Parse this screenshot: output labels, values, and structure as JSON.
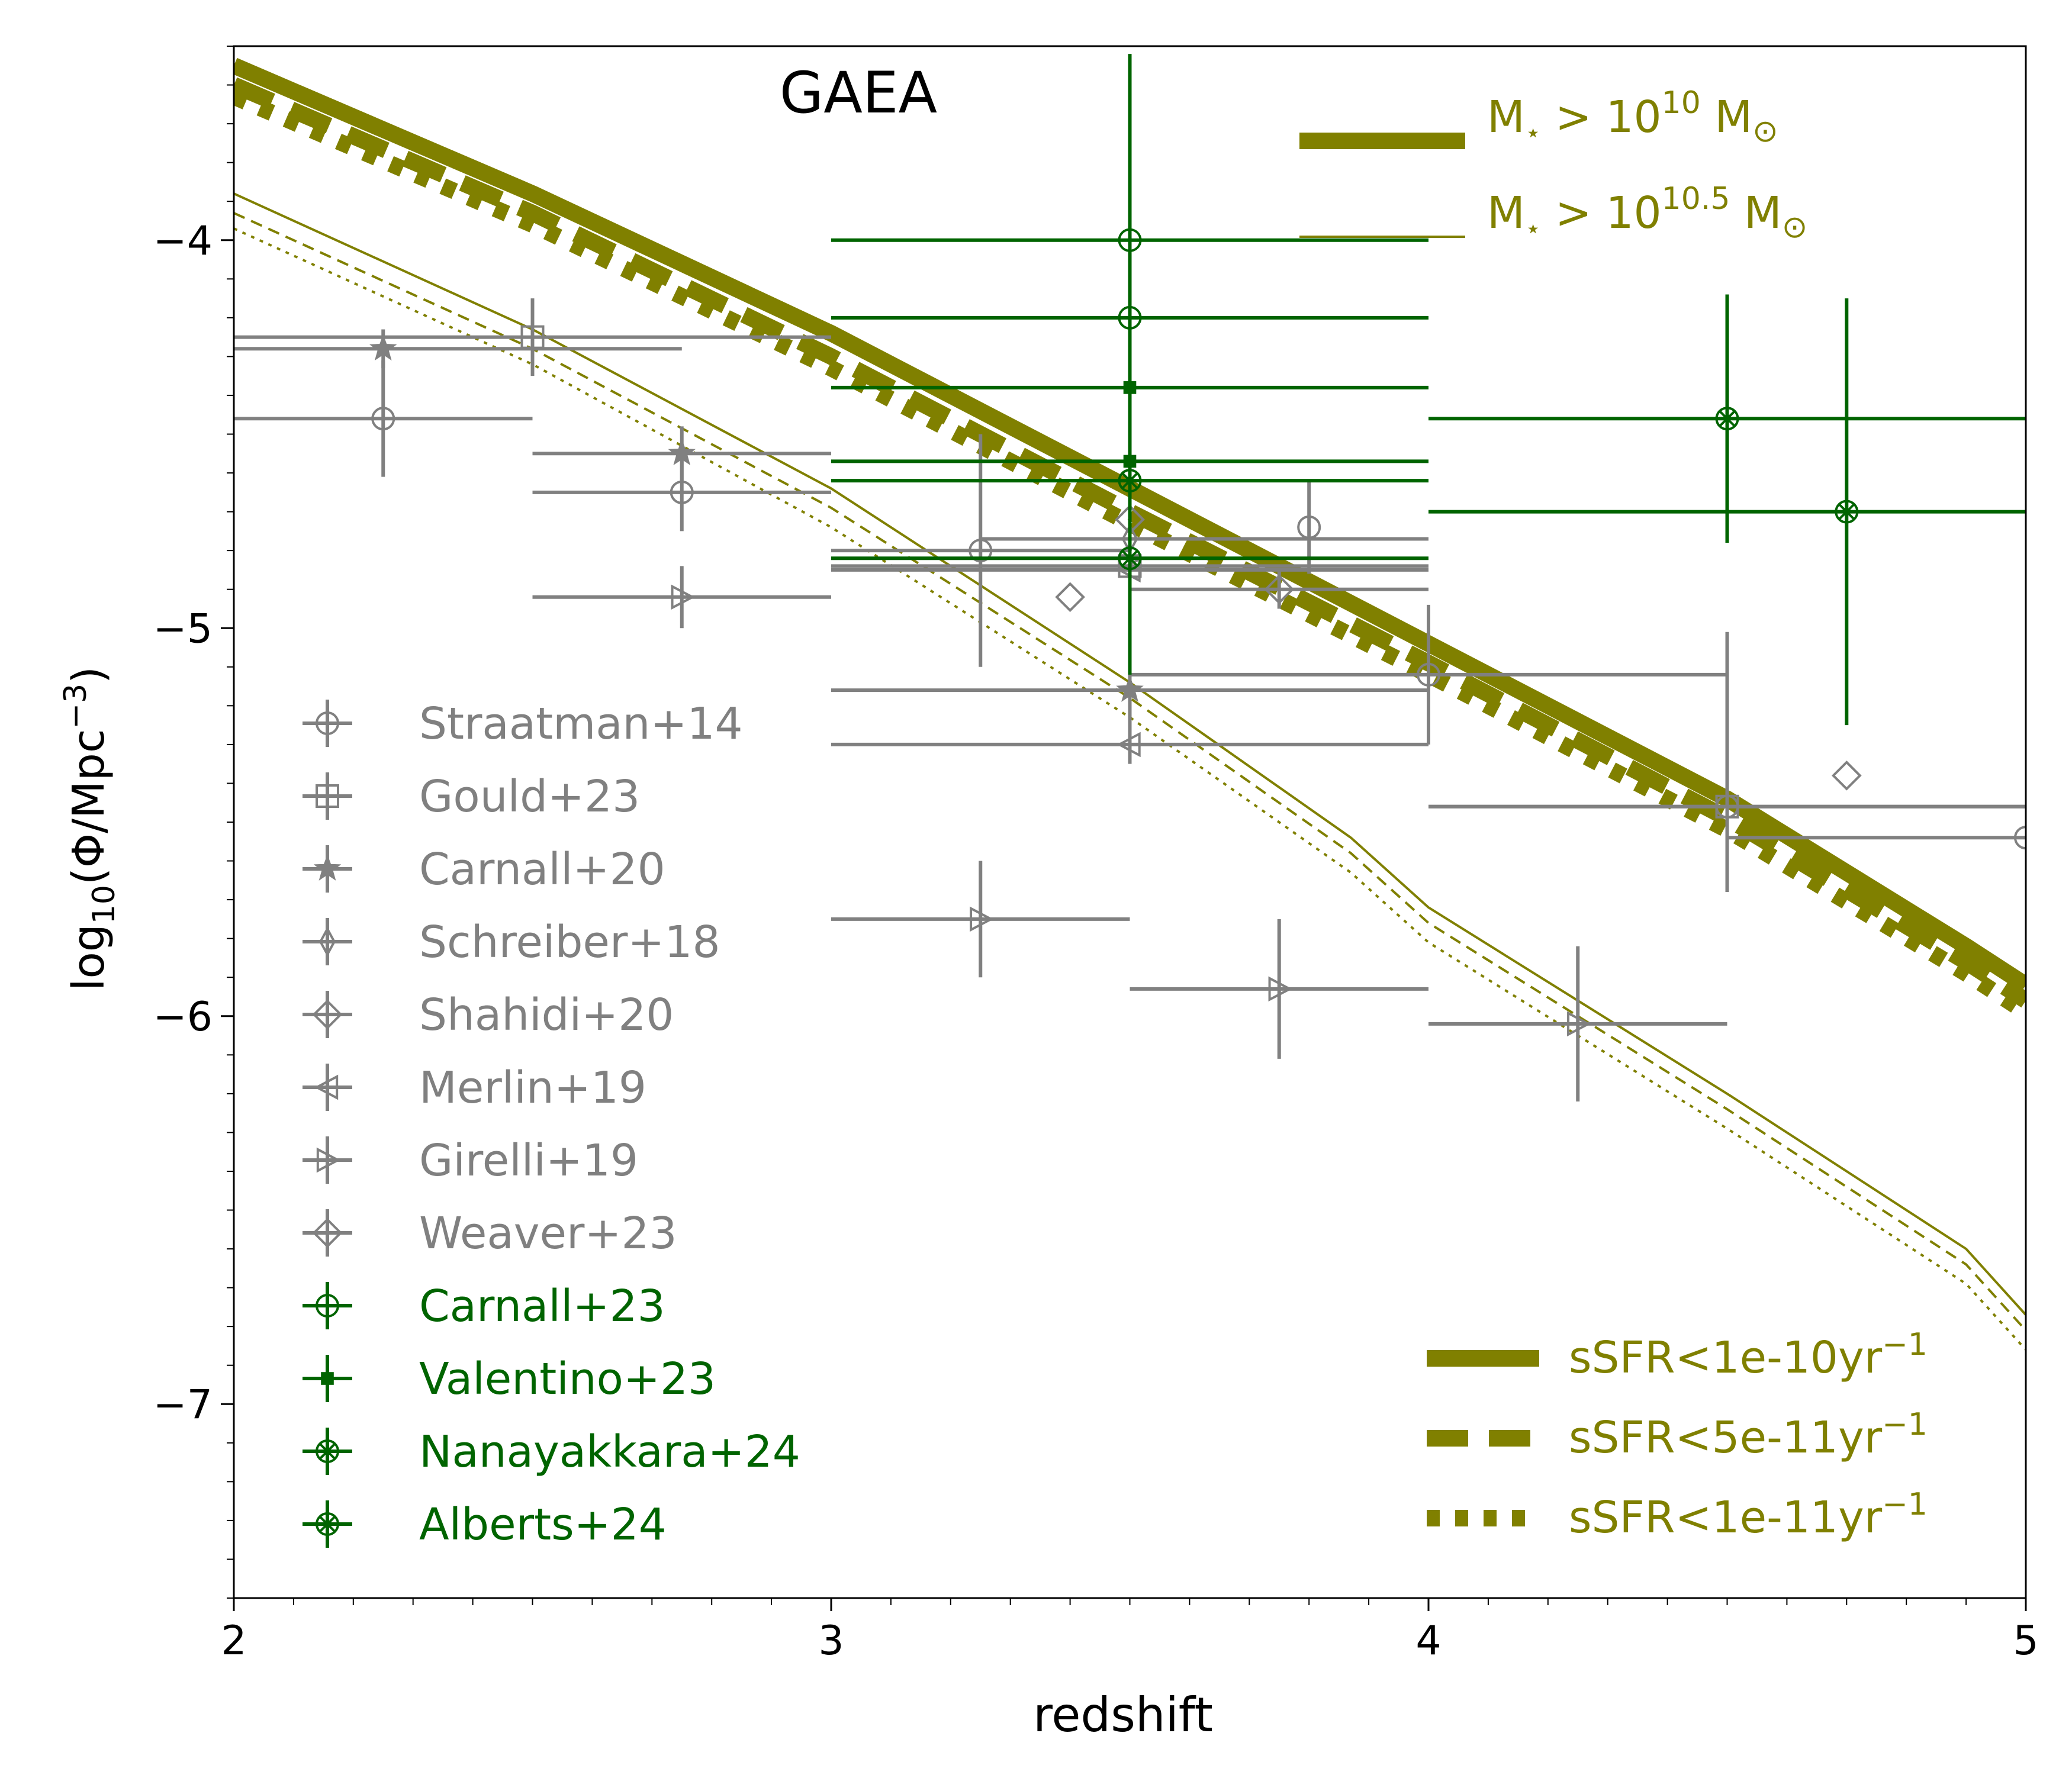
{
  "chart_data": {
    "type": "line",
    "title": "GAEA",
    "xlabel": "redshift",
    "ylabel_parts": [
      "log",
      "10",
      "(Φ/Mpc",
      "−3",
      ")"
    ],
    "xlim": [
      2,
      5
    ],
    "ylim": [
      -7.5,
      -3.5
    ],
    "xticks": [
      {
        "value": 2,
        "label": "2"
      },
      {
        "value": 3,
        "label": "3"
      },
      {
        "value": 4,
        "label": "4"
      },
      {
        "value": 5,
        "label": "5"
      }
    ],
    "yticks": [
      {
        "value": -4,
        "label": "−4"
      },
      {
        "value": -5,
        "label": "−5"
      },
      {
        "value": -6,
        "label": "−6"
      },
      {
        "value": -7,
        "label": "−7"
      }
    ],
    "colors": {
      "model": "#808000",
      "literature": "#808080",
      "jwst": "#006400",
      "axis": "#000000"
    },
    "model_curves": [
      {
        "mass": "10",
        "ssfr": "1e-10",
        "style": "solid",
        "x": [
          2.0,
          2.5,
          3.0,
          3.5,
          4.0,
          4.5,
          4.9,
          5.0
        ],
        "y": [
          -3.55,
          -3.88,
          -4.24,
          -4.64,
          -5.04,
          -5.44,
          -5.82,
          -5.92
        ]
      },
      {
        "mass": "10",
        "ssfr": "5e-11",
        "style": "dashed",
        "x": [
          2.0,
          2.5,
          3.0,
          3.5,
          4.0,
          4.5,
          4.9,
          5.0
        ],
        "y": [
          -3.6,
          -3.93,
          -4.3,
          -4.7,
          -5.09,
          -5.49,
          -5.86,
          -5.96
        ]
      },
      {
        "mass": "10",
        "ssfr": "1e-11",
        "style": "dotted",
        "x": [
          2.0,
          2.5,
          3.0,
          3.5,
          4.0,
          4.5,
          4.9,
          5.0
        ],
        "y": [
          -3.63,
          -3.96,
          -4.33,
          -4.73,
          -5.12,
          -5.52,
          -5.89,
          -5.99
        ]
      },
      {
        "mass": "10.5",
        "ssfr": "1e-10",
        "style": "solid",
        "x": [
          2.0,
          2.5,
          3.0,
          3.5,
          3.87,
          4.0,
          4.5,
          4.9,
          5.0
        ],
        "y": [
          -3.88,
          -4.23,
          -4.64,
          -5.14,
          -5.54,
          -5.72,
          -6.2,
          -6.6,
          -6.77
        ]
      },
      {
        "mass": "10.5",
        "ssfr": "5e-11",
        "style": "dashed",
        "x": [
          2.0,
          2.5,
          3.0,
          3.5,
          3.87,
          4.0,
          4.5,
          4.9,
          5.0
        ],
        "y": [
          -3.93,
          -4.28,
          -4.69,
          -5.18,
          -5.58,
          -5.76,
          -6.24,
          -6.64,
          -6.81
        ]
      },
      {
        "mass": "10.5",
        "ssfr": "1e-11",
        "style": "dotted",
        "x": [
          2.0,
          2.5,
          3.0,
          3.5,
          3.87,
          4.0,
          4.5,
          4.9,
          5.0
        ],
        "y": [
          -3.97,
          -4.32,
          -4.74,
          -5.23,
          -5.63,
          -5.81,
          -6.29,
          -6.69,
          -6.86
        ]
      }
    ],
    "series": [
      {
        "name": "Straatman+14",
        "group": "literature",
        "marker": "circle",
        "points": [
          {
            "x": 2.25,
            "y": -4.46,
            "xerr": [
              0.25,
              0.25
            ],
            "yerr": [
              0.15,
              0.15
            ]
          },
          {
            "x": 2.75,
            "y": -4.65,
            "xerr": [
              0.25,
              0.25
            ],
            "yerr": [
              0.1,
              0.1
            ]
          },
          {
            "x": 3.25,
            "y": -4.8,
            "xerr": [
              0.25,
              0.25
            ],
            "yerr": [
              0.3,
              0.3
            ]
          },
          {
            "x": 3.8,
            "y": -4.74,
            "xerr": [
              0.0,
              0.0
            ],
            "yerr": [
              0.12,
              0.12
            ]
          },
          {
            "x": 4.0,
            "y": -5.12,
            "xerr": [
              0.5,
              0.5
            ],
            "yerr": [
              0.18,
              0.18
            ]
          },
          {
            "x": 4.5,
            "y": -5.46,
            "xerr": [
              0.5,
              0.5
            ],
            "yerr": [
              0.0,
              0.0
            ]
          },
          {
            "x": 5.0,
            "y": -5.54,
            "xerr": [
              0.5,
              0.0
            ],
            "yerr": [
              0.0,
              0.0
            ]
          }
        ]
      },
      {
        "name": "Gould+23",
        "group": "literature",
        "marker": "square",
        "points": [
          {
            "x": 2.5,
            "y": -4.25,
            "xerr": [
              0.5,
              0.5
            ],
            "yerr": [
              0.1,
              0.1
            ]
          },
          {
            "x": 3.5,
            "y": -4.84,
            "xerr": [
              0.5,
              0.5
            ],
            "yerr": [
              0.0,
              0.0
            ]
          },
          {
            "x": 4.5,
            "y": -5.46,
            "xerr": [
              0.5,
              0.5
            ],
            "yerr": [
              0.22,
              0.45
            ]
          }
        ]
      },
      {
        "name": "Carnall+20",
        "group": "literature",
        "marker": "star",
        "points": [
          {
            "x": 2.25,
            "y": -4.28,
            "xerr": [
              0.25,
              0.5
            ],
            "yerr": [
              0.05,
              0.05
            ]
          },
          {
            "x": 2.75,
            "y": -4.55,
            "xerr": [
              0.25,
              0.25
            ],
            "yerr": [
              0.07,
              0.07
            ]
          },
          {
            "x": 3.5,
            "y": -5.16,
            "xerr": [
              0.5,
              0.5
            ],
            "yerr": [
              0.12,
              0.12
            ]
          }
        ]
      },
      {
        "name": "Schreiber+18",
        "group": "literature",
        "marker": "thin_diamond",
        "points": [
          {
            "x": 3.5,
            "y": -4.77,
            "xerr": [
              0.25,
              0.5
            ],
            "yerr": [
              0.2,
              0.2
            ]
          }
        ]
      },
      {
        "name": "Shahidi+20",
        "group": "literature",
        "marker": "diamond",
        "points": [
          {
            "x": 3.4,
            "y": -4.92,
            "xerr": [
              0.0,
              0.0
            ],
            "yerr": [
              0.0,
              0.0
            ]
          },
          {
            "x": 4.7,
            "y": -5.38,
            "xerr": [
              0.0,
              0.0
            ],
            "yerr": [
              0.0,
              0.0
            ]
          }
        ]
      },
      {
        "name": "Merlin+19",
        "group": "literature",
        "marker": "triangle_left",
        "points": [
          {
            "x": 3.5,
            "y": -5.3,
            "xerr": [
              0.5,
              0.5
            ],
            "yerr": [
              0.05,
              0.05
            ]
          },
          {
            "x": 3.5,
            "y": -4.85,
            "xerr": [
              0.5,
              0.5
            ],
            "yerr": [
              0.05,
              0.05
            ]
          }
        ]
      },
      {
        "name": "Girelli+19",
        "group": "literature",
        "marker": "triangle_right",
        "points": [
          {
            "x": 2.75,
            "y": -4.92,
            "xerr": [
              0.25,
              0.25
            ],
            "yerr": [
              0.08,
              0.08
            ]
          },
          {
            "x": 3.25,
            "y": -5.75,
            "xerr": [
              0.25,
              0.25
            ],
            "yerr": [
              0.15,
              0.15
            ]
          },
          {
            "x": 3.75,
            "y": -5.93,
            "xerr": [
              0.25,
              0.25
            ],
            "yerr": [
              0.18,
              0.18
            ]
          },
          {
            "x": 4.25,
            "y": -6.02,
            "xerr": [
              0.25,
              0.25
            ],
            "yerr": [
              0.2,
              0.2
            ]
          }
        ]
      },
      {
        "name": "Weaver+23",
        "group": "literature",
        "marker": "plus_diamond",
        "points": [
          {
            "x": 3.5,
            "y": -4.72,
            "xerr": [
              0.0,
              0.0
            ],
            "yerr": [
              0.08,
              0.08
            ]
          },
          {
            "x": 3.75,
            "y": -4.9,
            "xerr": [
              0.25,
              0.25
            ],
            "yerr": [
              0.05,
              0.05
            ]
          }
        ]
      },
      {
        "name": "Carnall+23",
        "group": "jwst",
        "marker": "circle",
        "points": [
          {
            "x": 3.5,
            "y": -4.0,
            "xerr": [
              0.5,
              0.5
            ],
            "yerr": [
              0.48,
              0.48
            ]
          },
          {
            "x": 3.5,
            "y": -4.2,
            "xerr": [
              0.5,
              0.5
            ],
            "yerr": [
              0.0,
              0.0
            ]
          }
        ]
      },
      {
        "name": "Valentino+23",
        "group": "jwst",
        "marker": "plus",
        "points": [
          {
            "x": 3.5,
            "y": -4.38,
            "xerr": [
              0.5,
              0.5
            ],
            "yerr": [
              0.12,
              0.12
            ]
          },
          {
            "x": 3.5,
            "y": -4.57,
            "xerr": [
              0.5,
              0.5
            ],
            "yerr": [
              0.1,
              0.1
            ]
          }
        ]
      },
      {
        "name": "Nanayakkara+24",
        "group": "jwst",
        "marker": "circle_cross",
        "points": [
          {
            "x": 3.5,
            "y": -4.82,
            "xerr": [
              0.5,
              0.5
            ],
            "yerr": [
              0.3,
              0.3
            ]
          }
        ]
      },
      {
        "name": "Alberts+24",
        "group": "jwst",
        "marker": "circle_cross",
        "points": [
          {
            "x": 3.5,
            "y": -4.62,
            "xerr": [
              0.5,
              0.5
            ],
            "yerr": [
              0.0,
              0.0
            ]
          },
          {
            "x": 4.5,
            "y": -4.46,
            "xerr": [
              0.5,
              0.5
            ],
            "yerr": [
              0.32,
              0.32
            ]
          },
          {
            "x": 4.7,
            "y": -4.7,
            "xerr": [
              0.7,
              0.3
            ],
            "yerr": [
              0.55,
              0.55
            ]
          }
        ]
      }
    ],
    "mass_legend": {
      "placement": "top-right",
      "entries": [
        {
          "prefix": "M",
          "sub": "⋆",
          "gt": " > 10",
          "exp": "10",
          "unit": " M",
          "unit_sub": "⊙"
        },
        {
          "prefix": "M",
          "sub": "⋆",
          "gt": " > 10",
          "exp": "10.5",
          "unit": " M",
          "unit_sub": "⊙"
        }
      ]
    },
    "ssfr_legend": {
      "placement": "bottom-right",
      "entries": [
        {
          "text": "sSFR<1e-10yr",
          "exp": "−1",
          "style": "solid"
        },
        {
          "text": "sSFR<5e-11yr",
          "exp": "−1",
          "style": "dashed"
        },
        {
          "text": "sSFR<1e-11yr",
          "exp": "−1",
          "style": "dotted"
        }
      ]
    },
    "data_legend": {
      "placement": "center-left"
    }
  }
}
